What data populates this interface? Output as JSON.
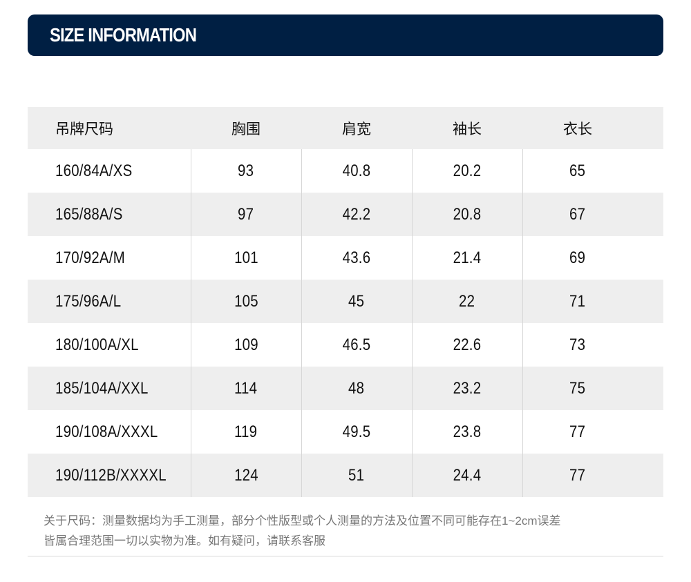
{
  "banner": {
    "title": "SIZE INFORMATION",
    "color": "#001f43"
  },
  "table": {
    "headers": [
      "吊牌尺码",
      "胸围",
      "肩宽",
      "袖长",
      "衣长"
    ],
    "rows": [
      [
        "160/84A/XS",
        "93",
        "40.8",
        "20.2",
        "65"
      ],
      [
        "165/88A/S",
        "97",
        "42.2",
        "20.8",
        "67"
      ],
      [
        "170/92A/M",
        "101",
        "43.6",
        "21.4",
        "69"
      ],
      [
        "175/96A/L",
        "105",
        "45",
        "22",
        "71"
      ],
      [
        "180/100A/XL",
        "109",
        "46.5",
        "22.6",
        "73"
      ],
      [
        "185/104A/XXL",
        "114",
        "48",
        "23.2",
        "75"
      ],
      [
        "190/108A/XXXL",
        "119",
        "49.5",
        "23.8",
        "77"
      ],
      [
        "190/112B/XXXXL",
        "124",
        "51",
        "24.4",
        "77"
      ]
    ]
  },
  "note": {
    "line1": "关于尺码：测量数据均为手工测量，部分个性版型或个人测量的方法及位置不同可能存在1~2cm误差",
    "line2": "皆属合理范围一切以实物为准。如有疑问，请联系客服"
  }
}
